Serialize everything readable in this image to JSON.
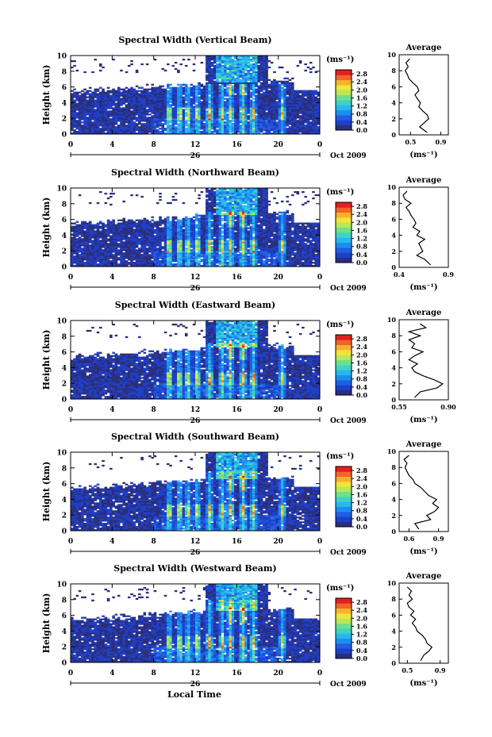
{
  "figure": {
    "xlabel": "Local Time",
    "colorbar_unit": "(ms⁻¹)",
    "average_title": "Average",
    "average_unit": "(ms⁻¹)",
    "day_label": "26",
    "date_label": "Oct 2009",
    "ylabel": "Height (km)",
    "colormap": [
      "#2b2e7a",
      "#1e3fc8",
      "#1f5fe0",
      "#1c8ef0",
      "#27b7f0",
      "#3fd3c8",
      "#6fe08a",
      "#b8e85a",
      "#f2e43a",
      "#f8b12e",
      "#f2642a",
      "#e2201f"
    ]
  },
  "chart_data": [
    {
      "type": "heatmap",
      "title": "Spectral Width (Vertical Beam)",
      "x_ticks": [
        "0",
        "4",
        "8",
        "12",
        "16",
        "20",
        "0"
      ],
      "y_ticks": [
        "0",
        "2",
        "4",
        "6",
        "8",
        "10"
      ],
      "xlim": [
        0,
        24
      ],
      "ylim": [
        0,
        10
      ],
      "colorbar_ticks": [
        "0.0",
        "0.4",
        "0.8",
        "1.2",
        "1.6",
        "2.0",
        "2.4",
        "2.8"
      ],
      "clim": [
        0,
        3.0
      ],
      "average": {
        "x_ticks": [
          "0.5",
          "0.9"
        ],
        "xlim": [
          0.35,
          1.0
        ],
        "tick_values": [
          0.5,
          0.9
        ],
        "height_km": [
          0.3,
          1.0,
          1.5,
          2.0,
          2.5,
          3.0,
          3.5,
          4.0,
          4.5,
          5.0,
          5.5,
          6.0,
          6.5,
          7.0,
          7.5,
          8.0,
          8.5,
          9.0,
          9.5
        ],
        "value": [
          0.72,
          0.62,
          0.68,
          0.74,
          0.72,
          0.66,
          0.61,
          0.63,
          0.59,
          0.56,
          0.61,
          0.59,
          0.53,
          0.48,
          0.46,
          0.43,
          0.47,
          0.44,
          0.49
        ]
      }
    },
    {
      "type": "heatmap",
      "title": "Spectral Width (Northward Beam)",
      "x_ticks": [
        "0",
        "4",
        "8",
        "12",
        "16",
        "20",
        "0"
      ],
      "y_ticks": [
        "0",
        "2",
        "4",
        "6",
        "8",
        "10"
      ],
      "xlim": [
        0,
        24
      ],
      "ylim": [
        0,
        10
      ],
      "colorbar_ticks": [
        "0.0",
        "0.4",
        "0.8",
        "1.2",
        "1.6",
        "2.0",
        "2.4",
        "2.8"
      ],
      "clim": [
        0,
        3.0
      ],
      "average": {
        "x_ticks": [
          "0.4",
          "0.9"
        ],
        "xlim": [
          0.4,
          0.9
        ],
        "tick_values": [
          0.4,
          0.9
        ],
        "height_km": [
          0.3,
          1.0,
          1.5,
          2.0,
          2.5,
          3.0,
          3.5,
          4.0,
          4.5,
          5.0,
          5.5,
          6.0,
          6.5,
          7.0,
          7.5,
          8.0,
          8.5,
          9.0,
          9.5
        ],
        "value": [
          0.72,
          0.66,
          0.58,
          0.64,
          0.62,
          0.6,
          0.66,
          0.58,
          0.61,
          0.54,
          0.57,
          0.55,
          0.52,
          0.5,
          0.47,
          0.52,
          0.46,
          0.44,
          0.48
        ]
      }
    },
    {
      "type": "heatmap",
      "title": "Spectral Width (Eastward Beam)",
      "x_ticks": [
        "0",
        "4",
        "8",
        "12",
        "16",
        "20",
        "0"
      ],
      "y_ticks": [
        "0",
        "2",
        "4",
        "6",
        "8",
        "10"
      ],
      "xlim": [
        0,
        24
      ],
      "ylim": [
        0,
        10
      ],
      "colorbar_ticks": [
        "0.0",
        "0.4",
        "0.8",
        "1.2",
        "1.6",
        "2.0",
        "2.4",
        "2.8"
      ],
      "clim": [
        0,
        3.0
      ],
      "average": {
        "x_ticks": [
          "0.55",
          "0.90"
        ],
        "xlim": [
          0.55,
          0.9
        ],
        "tick_values": [
          0.55,
          0.9
        ],
        "height_km": [
          0.3,
          1.0,
          1.5,
          2.0,
          2.5,
          3.0,
          3.5,
          4.0,
          4.5,
          5.0,
          5.5,
          6.0,
          6.5,
          7.0,
          7.5,
          8.0,
          8.5,
          9.0,
          9.5
        ],
        "value": [
          0.66,
          0.7,
          0.82,
          0.86,
          0.8,
          0.72,
          0.66,
          0.64,
          0.68,
          0.62,
          0.66,
          0.72,
          0.64,
          0.66,
          0.62,
          0.7,
          0.62,
          0.74,
          0.7
        ]
      }
    },
    {
      "type": "heatmap",
      "title": "Spectral Width (Southward Beam)",
      "x_ticks": [
        "0",
        "4",
        "8",
        "12",
        "16",
        "20",
        "0"
      ],
      "y_ticks": [
        "0",
        "2",
        "4",
        "6",
        "8",
        "10"
      ],
      "xlim": [
        0,
        24
      ],
      "ylim": [
        0,
        10
      ],
      "colorbar_ticks": [
        "0.0",
        "0.4",
        "0.8",
        "1.2",
        "1.6",
        "2.0",
        "2.4",
        "2.8"
      ],
      "clim": [
        0,
        3.0
      ],
      "average": {
        "x_ticks": [
          "0.6",
          "0.9"
        ],
        "xlim": [
          0.5,
          1.0
        ],
        "tick_values": [
          0.6,
          0.9
        ],
        "height_km": [
          0.3,
          1.0,
          1.5,
          2.0,
          2.5,
          3.0,
          3.5,
          4.0,
          4.5,
          5.0,
          5.5,
          6.0,
          6.5,
          7.0,
          7.5,
          8.0,
          8.5,
          9.0,
          9.5
        ],
        "value": [
          0.7,
          0.66,
          0.82,
          0.78,
          0.86,
          0.9,
          0.84,
          0.88,
          0.8,
          0.76,
          0.72,
          0.66,
          0.64,
          0.6,
          0.58,
          0.56,
          0.58,
          0.55,
          0.6
        ]
      }
    },
    {
      "type": "heatmap",
      "title": "Spectral Width (Westward Beam)",
      "x_ticks": [
        "0",
        "4",
        "8",
        "12",
        "16",
        "20",
        "0"
      ],
      "y_ticks": [
        "0",
        "2",
        "4",
        "6",
        "8",
        "10"
      ],
      "xlim": [
        0,
        24
      ],
      "ylim": [
        0,
        10
      ],
      "colorbar_ticks": [
        "0.0",
        "0.4",
        "0.8",
        "1.2",
        "1.6",
        "2.0",
        "2.4",
        "2.8"
      ],
      "clim": [
        0,
        3.0
      ],
      "average": {
        "x_ticks": [
          "0.5",
          "0.9"
        ],
        "xlim": [
          0.4,
          1.0
        ],
        "tick_values": [
          0.5,
          0.9
        ],
        "height_km": [
          0.3,
          1.0,
          1.5,
          2.0,
          2.5,
          3.0,
          3.5,
          4.0,
          4.5,
          5.0,
          5.5,
          6.0,
          6.5,
          7.0,
          7.5,
          8.0,
          8.5,
          9.0,
          9.5
        ],
        "value": [
          0.66,
          0.7,
          0.76,
          0.8,
          0.74,
          0.72,
          0.68,
          0.62,
          0.6,
          0.56,
          0.6,
          0.54,
          0.58,
          0.52,
          0.5,
          0.56,
          0.52,
          0.55,
          0.5
        ]
      }
    }
  ]
}
